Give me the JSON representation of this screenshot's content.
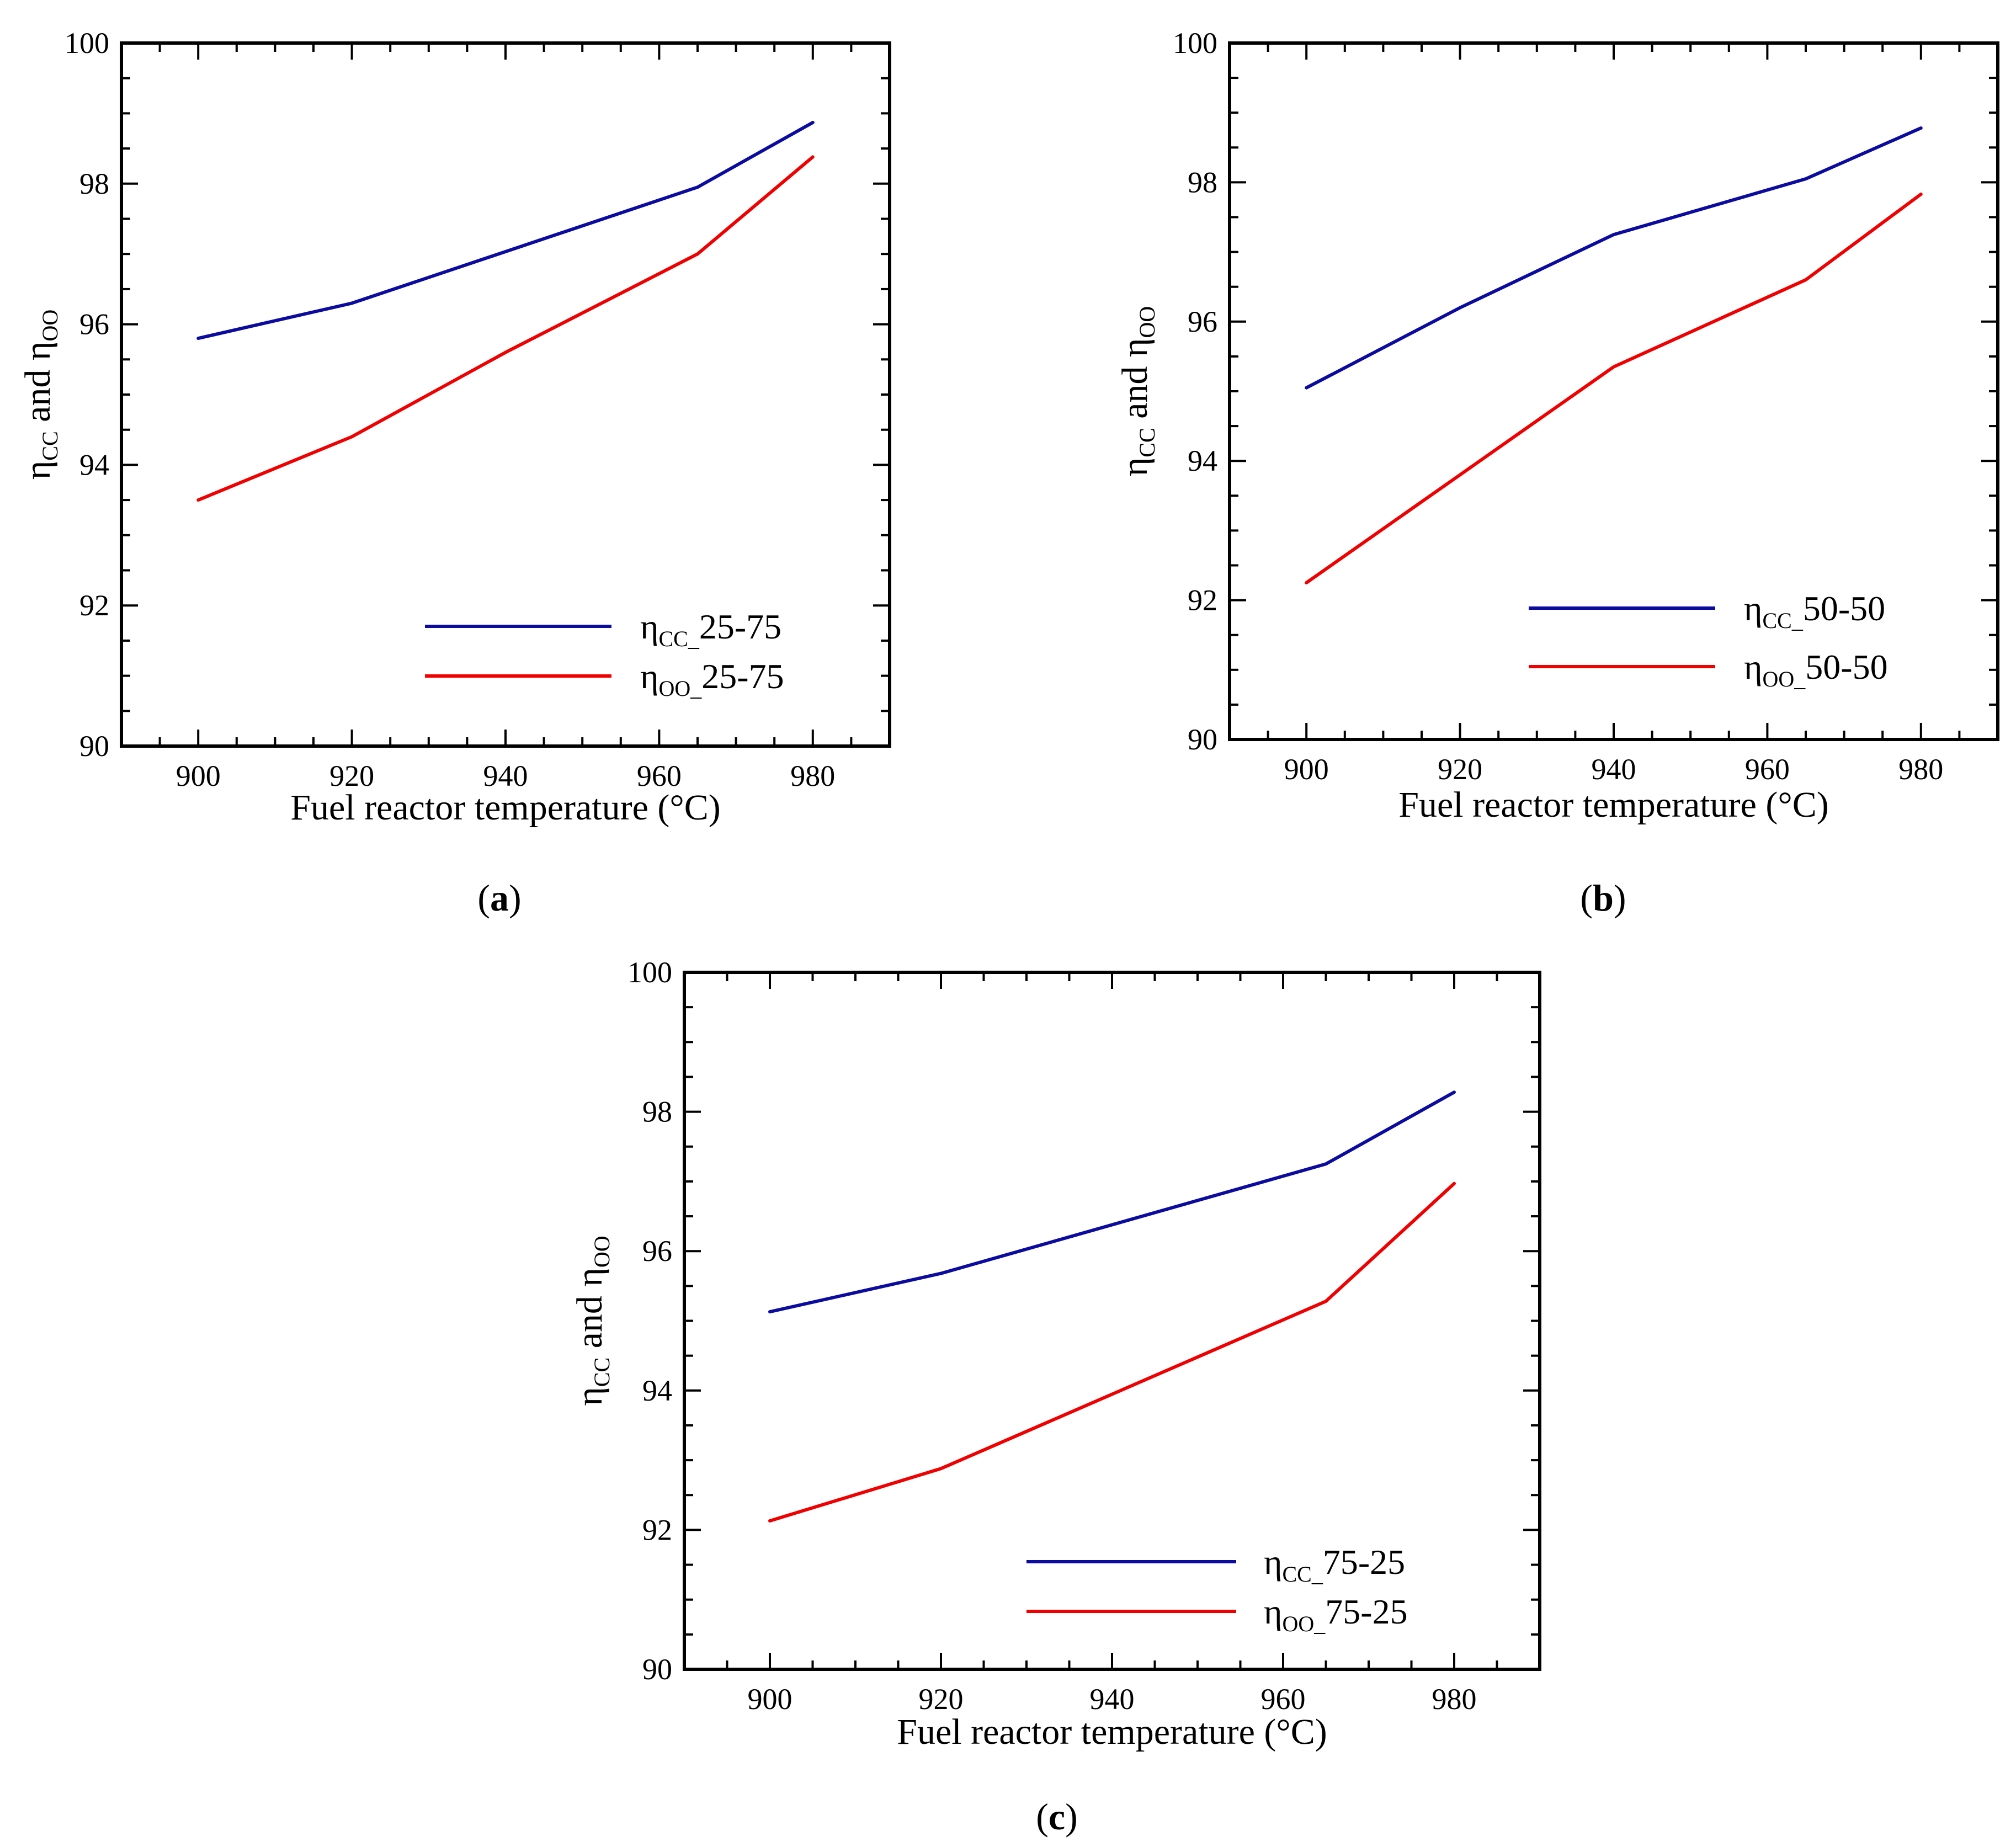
{
  "chart_data": [
    {
      "panel_label": "a",
      "type": "line",
      "xlabel": "Fuel reactor temperature (°C)",
      "ylabel": {
        "eta": "η",
        "sub1": "CC",
        "mid": " and ",
        "sub2": "OO"
      },
      "xlim": [
        890,
        990
      ],
      "ylim": [
        90,
        100
      ],
      "x_ticks": [
        900,
        920,
        940,
        960,
        980
      ],
      "y_ticks": [
        90,
        92,
        94,
        96,
        98,
        100
      ],
      "legend_position": "bottom-right",
      "series": [
        {
          "name": "η_CC_25-75",
          "sym": "η",
          "sub": "CC_",
          "suffix": "25-75",
          "color": "#0b0ba0",
          "x": [
            900,
            920,
            965,
            980
          ],
          "y": [
            95.8,
            96.3,
            97.95,
            98.87
          ]
        },
        {
          "name": "η_OO_25-75",
          "sym": "η",
          "sub": "OO_",
          "suffix": "25-75",
          "color": "#f00000",
          "x": [
            900,
            920,
            940,
            965,
            980
          ],
          "y": [
            93.5,
            94.4,
            95.6,
            97.0,
            98.38
          ]
        }
      ]
    },
    {
      "panel_label": "b",
      "type": "line",
      "xlabel": "Fuel reactor temperature (°C)",
      "ylabel": {
        "eta": "η",
        "sub1": "CC",
        "mid": " and ",
        "sub2": "OO"
      },
      "xlim": [
        890,
        990
      ],
      "ylim": [
        90,
        100
      ],
      "x_ticks": [
        900,
        920,
        940,
        960,
        980
      ],
      "y_ticks": [
        90,
        92,
        94,
        96,
        98,
        100
      ],
      "legend_position": "bottom-right",
      "series": [
        {
          "name": "η_CC_50-50",
          "sym": "η",
          "sub": "CC_",
          "suffix": "50-50",
          "color": "#0b0ba0",
          "x": [
            900,
            920,
            940,
            965,
            980
          ],
          "y": [
            95.05,
            96.2,
            97.25,
            98.05,
            98.78
          ]
        },
        {
          "name": "η_OO_50-50",
          "sym": "η",
          "sub": "OO_",
          "suffix": "50-50",
          "color": "#f00000",
          "x": [
            900,
            920,
            940,
            965,
            980
          ],
          "y": [
            92.25,
            93.8,
            95.35,
            96.6,
            97.83
          ]
        }
      ]
    },
    {
      "panel_label": "c",
      "type": "line",
      "xlabel": "Fuel reactor temperature (°C)",
      "ylabel": {
        "eta": "η",
        "sub1": "CC",
        "mid": " and ",
        "sub2": "OO"
      },
      "xlim": [
        890,
        990
      ],
      "ylim": [
        90,
        100
      ],
      "x_ticks": [
        900,
        920,
        940,
        960,
        980
      ],
      "y_ticks": [
        90,
        92,
        94,
        96,
        98,
        100
      ],
      "legend_position": "bottom-right",
      "series": [
        {
          "name": "η_CC_75-25",
          "sym": "η",
          "sub": "CC_",
          "suffix": "75-25",
          "color": "#0b0ba0",
          "x": [
            900,
            920,
            965,
            980
          ],
          "y": [
            95.13,
            95.68,
            97.25,
            98.28
          ]
        },
        {
          "name": "η_OO_75-25",
          "sym": "η",
          "sub": "OO_",
          "suffix": "75-25",
          "color": "#f00000",
          "x": [
            900,
            920,
            965,
            980
          ],
          "y": [
            92.13,
            92.88,
            95.28,
            96.97
          ]
        }
      ]
    }
  ]
}
